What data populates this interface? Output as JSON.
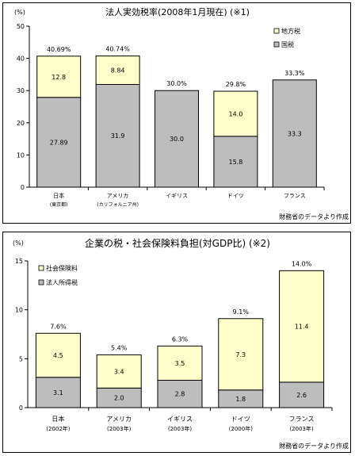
{
  "chart_data": [
    {
      "type": "bar",
      "stacked": true,
      "title": "法人実効税率(2008年1月現在) (※1)",
      "ylabel": "(%)",
      "ylim": [
        0,
        50
      ],
      "yticks": [
        0,
        10,
        20,
        30,
        40,
        50
      ],
      "categories": [
        "日本",
        "アメリカ",
        "イギリス",
        "ドイツ",
        "フランス"
      ],
      "category_sublabels": [
        "(東京都)",
        "(カリフォルニア州)",
        "",
        "",
        ""
      ],
      "series": [
        {
          "name": "国税",
          "values": [
            27.89,
            31.9,
            30.0,
            15.8,
            33.3
          ],
          "labels": [
            "27.89",
            "31.9",
            "30.0",
            "15.8",
            "33.3"
          ]
        },
        {
          "name": "地方税",
          "values": [
            12.8,
            8.84,
            0,
            14.0,
            0
          ],
          "labels": [
            "12.8",
            "8.84",
            "",
            "14.0",
            ""
          ]
        }
      ],
      "totals": [
        "40.69%",
        "40.74%",
        "30.0%",
        "29.8%",
        "33.3%"
      ],
      "legend": "top-right",
      "grid": false,
      "source_note": "財務省のデータより作成",
      "colors": {
        "bottom": "#bdbdbd",
        "top": "#ffffcc"
      }
    },
    {
      "type": "bar",
      "stacked": true,
      "title": "企業の税・社会保険料負担(対GDP比) (※2)",
      "ylabel": "(%)",
      "ylim": [
        0,
        15
      ],
      "yticks": [
        0,
        5,
        10,
        15
      ],
      "categories": [
        "日本",
        "アメリカ",
        "イギリス",
        "ドイツ",
        "フランス"
      ],
      "category_sublabels": [
        "(2002年)",
        "(2003年)",
        "(2003年)",
        "(2000年)",
        "(2003年)"
      ],
      "series": [
        {
          "name": "法人所得税",
          "values": [
            3.1,
            2.0,
            2.8,
            1.8,
            2.6
          ],
          "labels": [
            "3.1",
            "2.0",
            "2.8",
            "1.8",
            "2.6"
          ]
        },
        {
          "name": "社会保険料",
          "values": [
            4.5,
            3.4,
            3.5,
            7.3,
            11.4
          ],
          "labels": [
            "4.5",
            "3.4",
            "3.5",
            "7.3",
            "11.4"
          ]
        }
      ],
      "totals": [
        "7.6%",
        "5.4%",
        "6.3%",
        "9.1%",
        "14.0%"
      ],
      "legend": "top-left",
      "grid": false,
      "source_note": "財務省のデータより作成",
      "colors": {
        "bottom": "#bdbdbd",
        "top": "#ffffcc"
      }
    }
  ]
}
